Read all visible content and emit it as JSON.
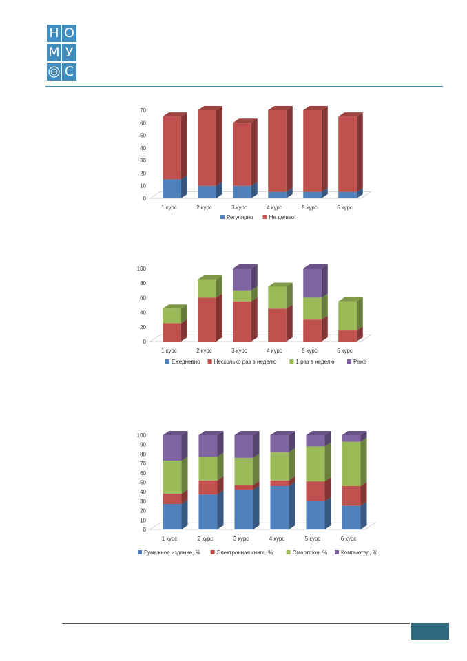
{
  "logo": {
    "letters": [
      "Н",
      "О",
      "М",
      "У",
      "С"
    ],
    "color": "#3f8cbd",
    "emblem_icon": "emblem-icon"
  },
  "rule_color": "#4a8da8",
  "badge_color": "#2e6a80",
  "chart_data": [
    {
      "type": "bar",
      "stacked": true,
      "three_d": true,
      "categories": [
        "1 курс",
        "2 курс",
        "3 курс",
        "4 курс",
        "5 курс",
        "6 курс"
      ],
      "series": [
        {
          "name": "Регулярно",
          "color": "#4f81bd",
          "values": [
            15,
            10,
            10,
            5,
            5,
            5
          ]
        },
        {
          "name": "Не делают",
          "color": "#c0504d",
          "values": [
            50,
            60,
            50,
            65,
            65,
            60
          ]
        }
      ],
      "ylim": [
        0,
        70
      ],
      "yticks": [
        0,
        10,
        20,
        30,
        40,
        50,
        60,
        70
      ],
      "grid": false,
      "legend": "bottom"
    },
    {
      "type": "bar",
      "stacked": true,
      "three_d": true,
      "categories": [
        "1 курс",
        "2 курс",
        "3 курс",
        "4 курс",
        "5 курс",
        "6 курс"
      ],
      "series": [
        {
          "name": "Ежедневно",
          "color": "#4f81bd",
          "values": [
            0,
            0,
            0,
            0,
            0,
            0
          ]
        },
        {
          "name": "Несколько раз в неделю",
          "color": "#c0504d",
          "values": [
            25,
            60,
            55,
            45,
            30,
            15
          ]
        },
        {
          "name": "1 раз в неделю",
          "color": "#9bbb59",
          "values": [
            20,
            25,
            15,
            30,
            30,
            40
          ]
        },
        {
          "name": "Реже",
          "color": "#8064a2",
          "values": [
            0,
            0,
            30,
            0,
            40,
            0
          ]
        }
      ],
      "ylim": [
        0,
        100
      ],
      "yticks": [
        0,
        20,
        40,
        60,
        80,
        100
      ],
      "grid": false,
      "legend": "bottom"
    },
    {
      "type": "bar",
      "stacked": true,
      "three_d": true,
      "categories": [
        "1 курс",
        "2 курс",
        "3 курс",
        "4 курс",
        "5 курс",
        "6 курс"
      ],
      "series": [
        {
          "name": "Бумажное издание, %",
          "color": "#4f81bd",
          "values": [
            27,
            37,
            42,
            46,
            30,
            25
          ]
        },
        {
          "name": "Электронная книга, %",
          "color": "#c0504d",
          "values": [
            11,
            15,
            5,
            6,
            21,
            21
          ]
        },
        {
          "name": "Смартфон, %",
          "color": "#9bbb59",
          "values": [
            35,
            25,
            29,
            30,
            37,
            47
          ]
        },
        {
          "name": "Компьютер, %",
          "color": "#8064a2",
          "values": [
            27,
            23,
            24,
            18,
            12,
            7
          ]
        }
      ],
      "ylim": [
        0,
        100
      ],
      "yticks": [
        0,
        10,
        20,
        30,
        40,
        50,
        60,
        70,
        80,
        90,
        100
      ],
      "grid": false,
      "legend": "bottom"
    }
  ]
}
